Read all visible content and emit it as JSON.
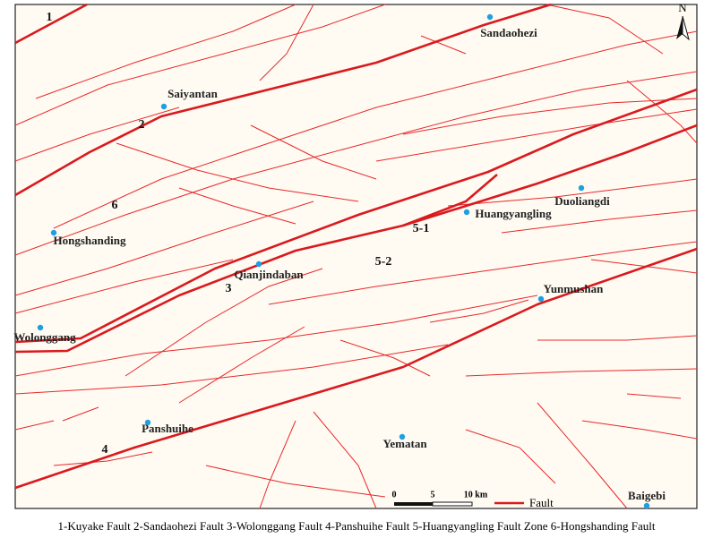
{
  "fault_labels": [
    "1",
    "2",
    "6",
    "3",
    "5-1",
    "5-2",
    "4"
  ],
  "places": [
    "Sandaohezi",
    "Saiyantan",
    "Hongshanding",
    "Qianjindaban",
    "Huangyangling",
    "Duoliangdi",
    "Yunmushan",
    "Wolonggang",
    "Panshuihe",
    "Yematan",
    "Baigebi"
  ],
  "scale_labels": [
    "0",
    "5",
    "10 km"
  ],
  "legend": "Fault",
  "north": "N",
  "caption": "1-Kuyake Fault  2-Sandaohezi Fault  3-Wolonggang Fault  4-Panshuihe Fault  5-Huangyangling Fault Zone  6-Hongshanding Fault"
}
